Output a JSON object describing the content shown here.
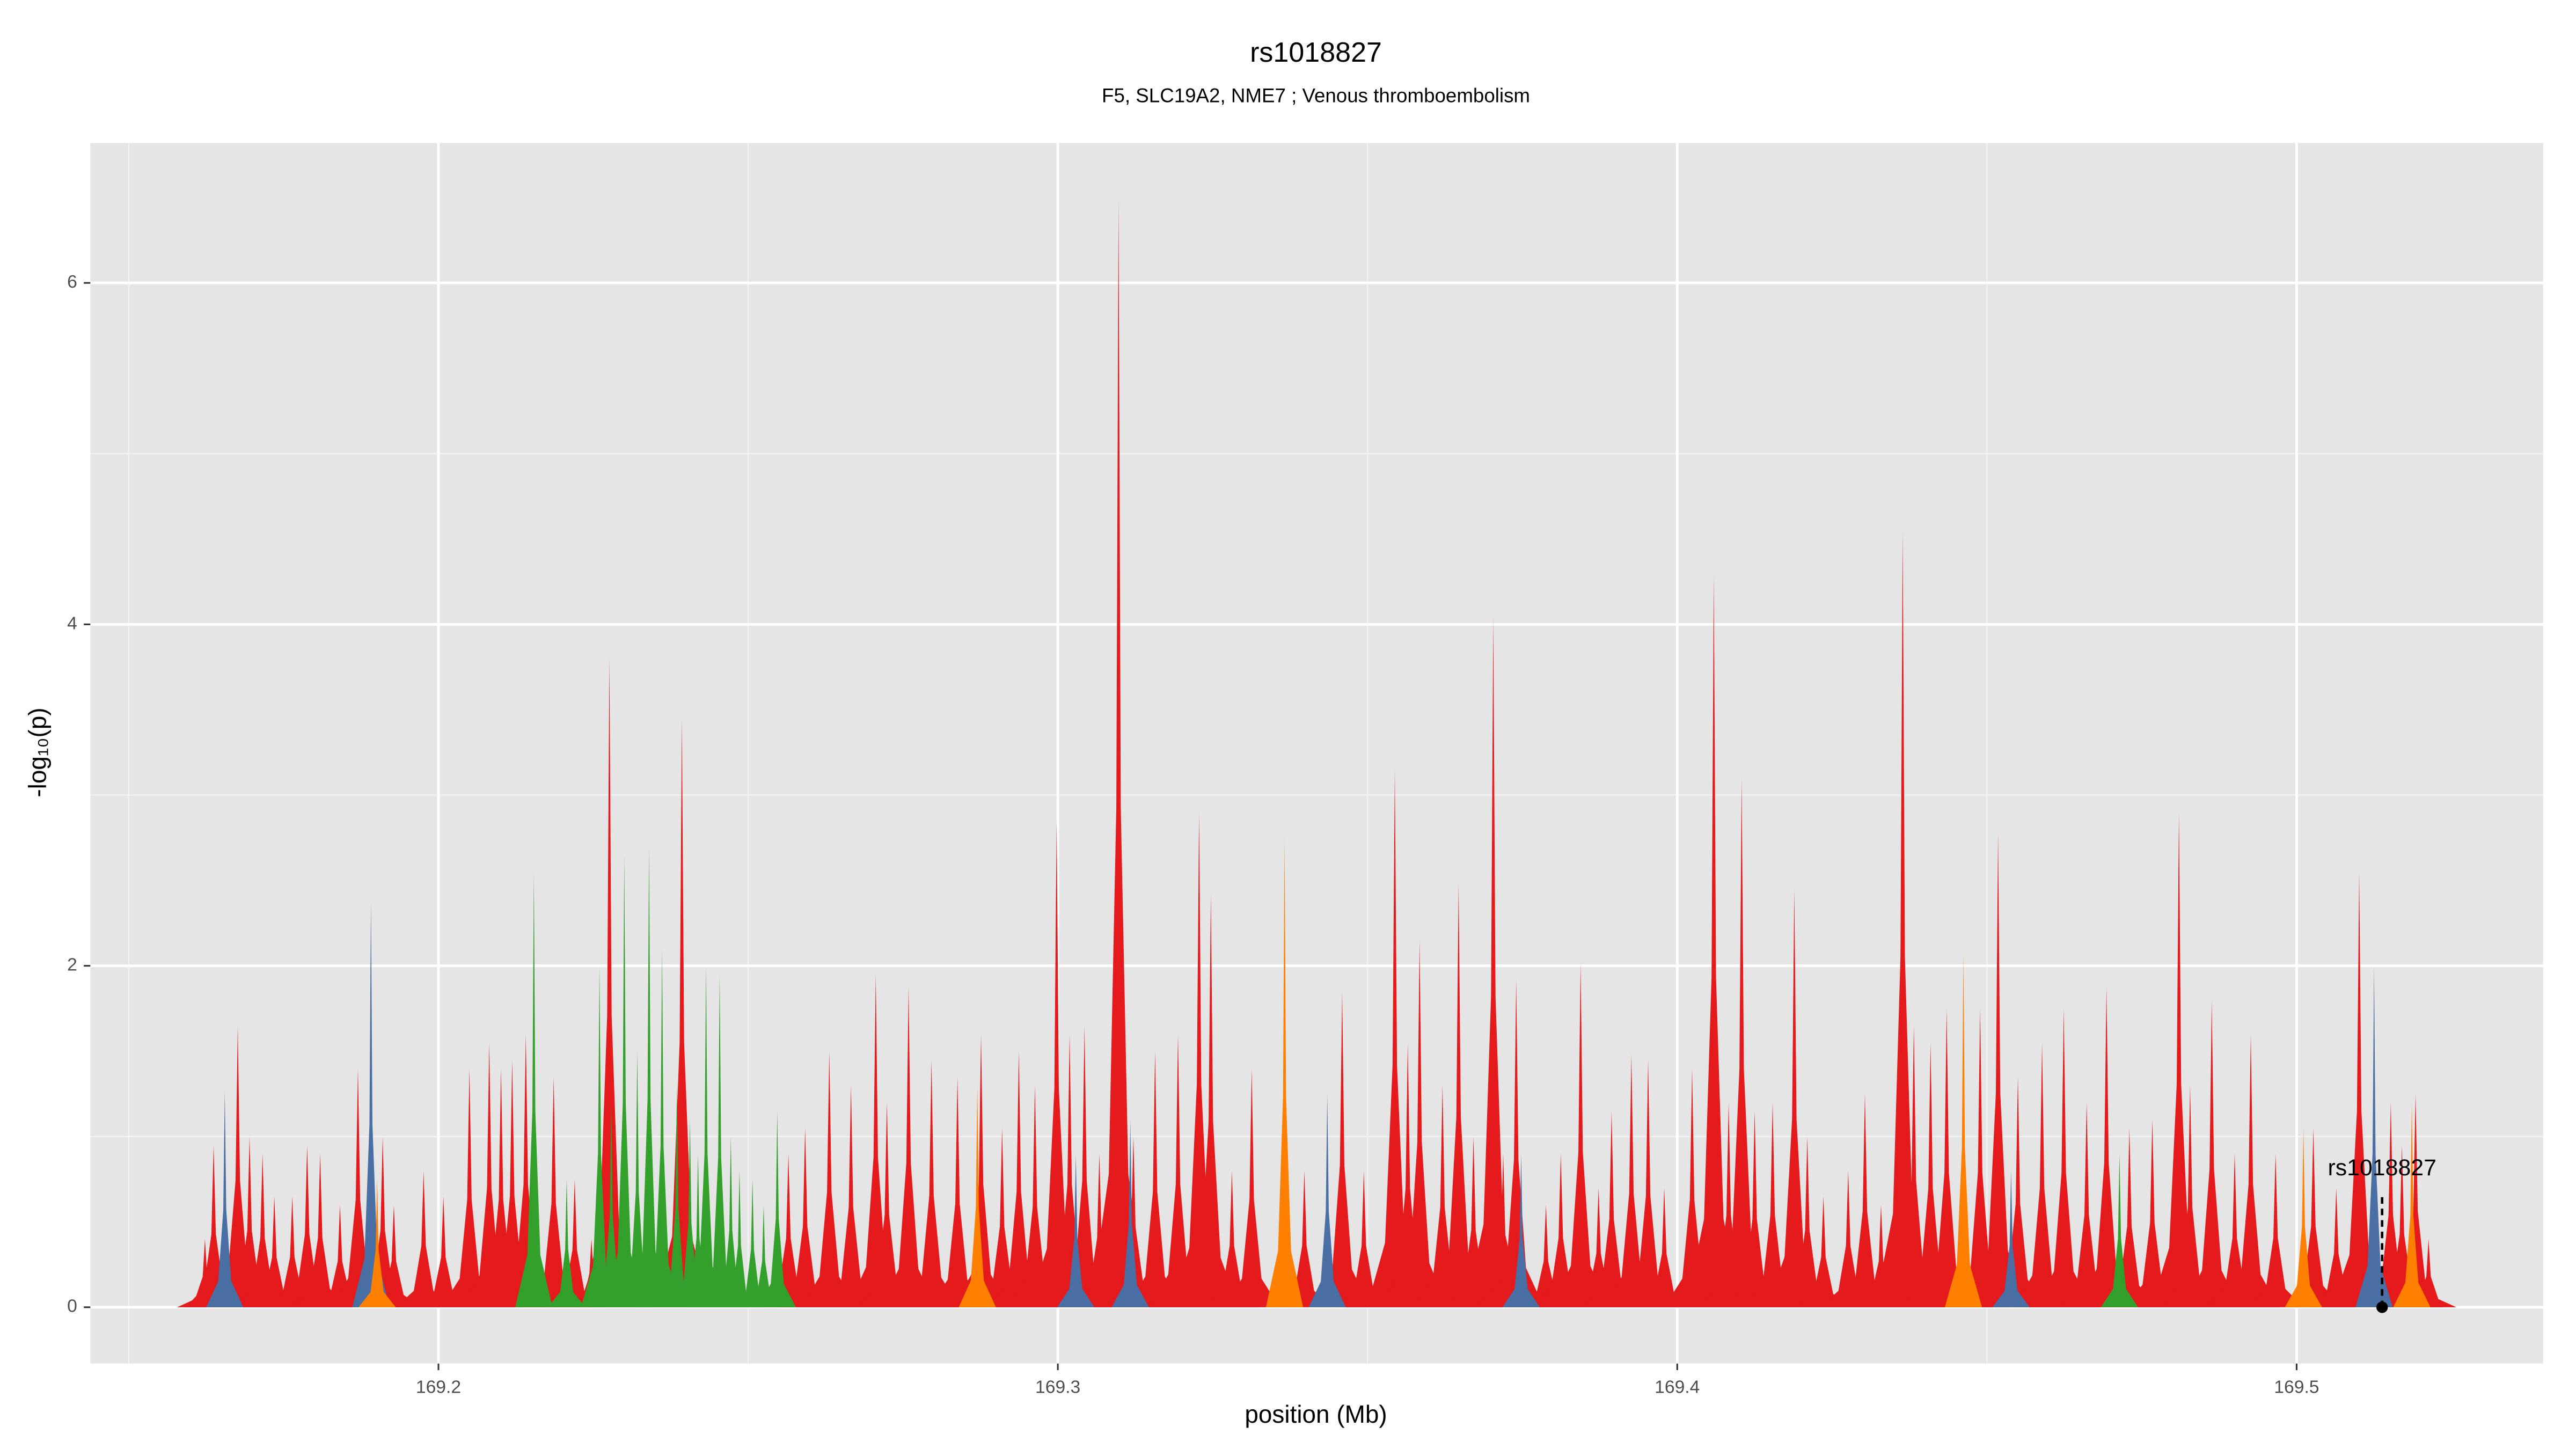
{
  "chart_data": {
    "type": "area",
    "title": "rs1018827",
    "subtitle": "F5, SLC19A2, NME7 ; Venous thromboembolism",
    "x_label": "position (Mb)",
    "y_label": "-log₁₀(p)",
    "xlim": [
      169.1438,
      169.5398
    ],
    "ylim": [
      -0.33,
      6.82
    ],
    "xticks": [
      169.2,
      169.3,
      169.4,
      169.5
    ],
    "yticks": [
      0,
      2,
      4,
      6
    ],
    "minor_xgrid": [
      169.15,
      169.25,
      169.35,
      169.45
    ],
    "minor_ygrid": [
      1,
      3,
      5
    ],
    "grid": true,
    "series": [
      {
        "color": "#e41a1c",
        "x": [
          169.1623,
          169.1637,
          169.1676,
          169.1695,
          169.1716,
          169.1735,
          169.1764,
          169.1788,
          169.1809,
          169.1841,
          169.187,
          169.191,
          169.1928,
          169.1976,
          169.2008,
          169.205,
          169.2082,
          169.2101,
          169.2119,
          169.2141,
          169.2186,
          169.222,
          169.2247,
          169.2276,
          169.2393,
          169.2565,
          169.2592,
          169.2631,
          169.2666,
          169.2706,
          169.2724,
          169.2759,
          169.2796,
          169.2838,
          169.2876,
          169.291,
          169.2937,
          169.2963,
          169.2998,
          169.3019,
          169.3043,
          169.3067,
          169.3098,
          169.3122,
          169.3157,
          169.3194,
          169.3228,
          169.3247,
          169.3281,
          169.3313,
          169.3398,
          169.3459,
          169.3494,
          169.3544,
          169.3565,
          169.3584,
          169.3621,
          169.3647,
          169.3671,
          169.3703,
          169.3719,
          169.374,
          169.3788,
          169.3812,
          169.3844,
          169.3873,
          169.3894,
          169.3926,
          169.3953,
          169.3979,
          169.4024,
          169.4059,
          169.4083,
          169.4104,
          169.4125,
          169.4154,
          169.4189,
          169.421,
          169.4236,
          169.4276,
          169.4303,
          169.4329,
          169.4364,
          169.4382,
          169.4409,
          169.4435,
          169.4489,
          169.4518,
          169.455,
          169.4589,
          169.4624,
          169.4661,
          169.4693,
          169.473,
          169.4767,
          169.481,
          169.4828,
          169.4863,
          169.49,
          169.4926,
          169.4966,
          169.5027,
          169.5064,
          169.5101,
          169.5152,
          169.517,
          169.5192,
          169.5213
        ],
        "values": [
          0.4,
          0.95,
          1.65,
          1.0,
          0.9,
          0.65,
          0.65,
          0.95,
          0.9,
          0.6,
          1.4,
          1.0,
          0.6,
          0.8,
          0.65,
          1.4,
          1.55,
          1.4,
          1.45,
          1.6,
          1.35,
          0.75,
          0.4,
          3.8,
          3.45,
          0.9,
          1.05,
          1.5,
          1.3,
          1.95,
          1.2,
          1.88,
          1.45,
          1.35,
          1.6,
          1.05,
          1.5,
          1.3,
          2.85,
          1.6,
          1.65,
          0.9,
          6.5,
          1.0,
          1.5,
          1.6,
          2.9,
          2.42,
          0.8,
          1.4,
          0.8,
          1.85,
          0.8,
          3.15,
          1.55,
          2.15,
          1.3,
          2.48,
          1.0,
          4.05,
          0.9,
          1.92,
          0.6,
          0.9,
          2.02,
          0.7,
          1.15,
          1.48,
          1.45,
          0.7,
          1.4,
          4.3,
          1.2,
          3.1,
          1.15,
          1.2,
          2.45,
          1.0,
          0.65,
          0.8,
          1.25,
          0.6,
          4.55,
          1.65,
          1.55,
          1.75,
          1.75,
          2.78,
          1.35,
          1.55,
          1.75,
          1.2,
          1.88,
          1.05,
          1.1,
          2.9,
          1.3,
          1.8,
          0.9,
          1.6,
          0.9,
          1.05,
          0.7,
          2.55,
          1.2,
          0.95,
          1.25,
          0.4
        ]
      },
      {
        "color": "#33a02c",
        "x": [
          169.2154,
          169.2207,
          169.226,
          169.2279,
          169.23,
          169.2321,
          169.234,
          169.2361,
          169.2385,
          169.2406,
          169.2419,
          169.2432,
          169.2454,
          169.2472,
          169.2486,
          169.2507,
          169.2525,
          169.2547,
          169.4714
        ],
        "values": [
          2.55,
          0.75,
          2.0,
          1.2,
          2.65,
          1.5,
          2.7,
          2.1,
          1.3,
          1.1,
          0.9,
          2.0,
          1.95,
          1.0,
          0.8,
          0.75,
          0.6,
          1.15,
          0.9
        ]
      },
      {
        "color": "#4a6fa5",
        "x": [
          169.1655,
          169.1891,
          169.3029,
          169.3117,
          169.3435,
          169.3748,
          169.4539,
          169.5125
        ],
        "values": [
          1.27,
          2.38,
          0.9,
          1.1,
          1.25,
          0.9,
          0.8,
          2.0
        ]
      },
      {
        "color": "#ff7f00",
        "x": [
          169.1901,
          169.287,
          169.3366,
          169.4462,
          169.5011,
          169.5186
        ],
        "values": [
          0.75,
          1.3,
          2.75,
          2.08,
          1.05,
          1.2
        ]
      }
    ],
    "highlight": {
      "label": "rs1018827",
      "x": 169.5138,
      "y": 0
    }
  }
}
